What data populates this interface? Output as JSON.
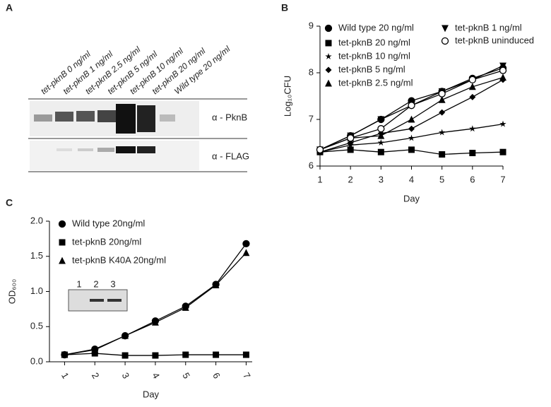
{
  "panel_labels": [
    "A",
    "B",
    "C"
  ],
  "blot": {
    "lanes": [
      "tet-pknB 0 ng/ml",
      "tet-pknB 1 ng/ml",
      "tet-pknB 2.5 ng/ml",
      "tet-pknB 5 ng/ml",
      "tet-pknB 10 ng/ml",
      "tet-pknB 20 ng/ml",
      "Wild type 20 ng/ml"
    ],
    "rows": [
      "α - PknB",
      "α - FLAG"
    ]
  },
  "chart_data": [
    {
      "type": "line",
      "x_label": "Day",
      "y_label": "Log₁₀CFU",
      "x": [
        1,
        2,
        3,
        4,
        5,
        6,
        7
      ],
      "xlim": [
        1,
        7
      ],
      "xticks": [
        1,
        2,
        3,
        4,
        5,
        6,
        7
      ],
      "ylim": [
        6,
        9
      ],
      "yticks": [
        6,
        7,
        8,
        9
      ],
      "series": [
        {
          "name": "Wild type 20 ng/ml",
          "color": "#000000",
          "marker": "circle",
          "values": [
            6.35,
            6.65,
            7.0,
            7.4,
            7.6,
            7.88,
            8.1
          ]
        },
        {
          "name": "tet-pknB 20 ng/ml",
          "color": "#000000",
          "marker": "square",
          "values": [
            6.3,
            6.35,
            6.3,
            6.35,
            6.25,
            6.28,
            6.3
          ]
        },
        {
          "name": "tet-pknB 10 ng/ml",
          "color": "#000000",
          "marker": "star",
          "values": [
            6.3,
            6.45,
            6.5,
            6.6,
            6.72,
            6.8,
            6.9
          ]
        },
        {
          "name": "tet-pknB 5 ng/ml",
          "color": "#000000",
          "marker": "diamond",
          "values": [
            6.3,
            6.5,
            6.7,
            6.8,
            7.15,
            7.48,
            7.85
          ]
        },
        {
          "name": "tet-pknB 2.5 ng/ml",
          "color": "#000000",
          "marker": "triangle",
          "values": [
            6.35,
            6.6,
            6.65,
            7.0,
            7.42,
            7.7,
            7.9
          ]
        },
        {
          "name": "tet-pknB 1 ng/ml",
          "color": "#000000",
          "marker": "triangle-down",
          "values": [
            6.35,
            6.65,
            7.0,
            7.3,
            7.6,
            7.85,
            8.15
          ]
        },
        {
          "name": "tet-pknB uninduced",
          "color": "#000000",
          "marker": "circle-open",
          "values": [
            6.35,
            6.6,
            6.8,
            7.3,
            7.55,
            7.85,
            8.05
          ]
        }
      ]
    },
    {
      "type": "line",
      "x_label": "Day",
      "y_label": "OD₆₀₀",
      "x": [
        1,
        2,
        3,
        4,
        5,
        6,
        7
      ],
      "xlim": [
        0.5,
        7.2
      ],
      "xticks": [
        1,
        2,
        3,
        4,
        5,
        6,
        7
      ],
      "ylim": [
        0,
        2
      ],
      "yticks": [
        {
          "value": 0,
          "label": "0.0"
        },
        {
          "value": 0.5,
          "label": "0.5"
        },
        {
          "value": 1,
          "label": "1.0"
        },
        {
          "value": 1.5,
          "label": "1.5"
        },
        {
          "value": 2,
          "label": "2.0"
        }
      ],
      "inset_lanes": [
        "1",
        "2",
        "3"
      ],
      "series": [
        {
          "name": "Wild type 20ng/ml",
          "color": "#000000",
          "marker": "circle",
          "values": [
            0.1,
            0.18,
            0.37,
            0.58,
            0.79,
            1.1,
            1.68
          ]
        },
        {
          "name": "tet-pknB 20ng/ml",
          "color": "#000000",
          "marker": "square",
          "values": [
            0.1,
            0.12,
            0.09,
            0.09,
            0.1,
            0.1,
            0.1
          ]
        },
        {
          "name": "tet-pknB K40A 20ng/ml",
          "color": "#000000",
          "marker": "triangle",
          "values": [
            0.1,
            0.17,
            0.37,
            0.56,
            0.77,
            1.09,
            1.55
          ]
        }
      ]
    }
  ]
}
